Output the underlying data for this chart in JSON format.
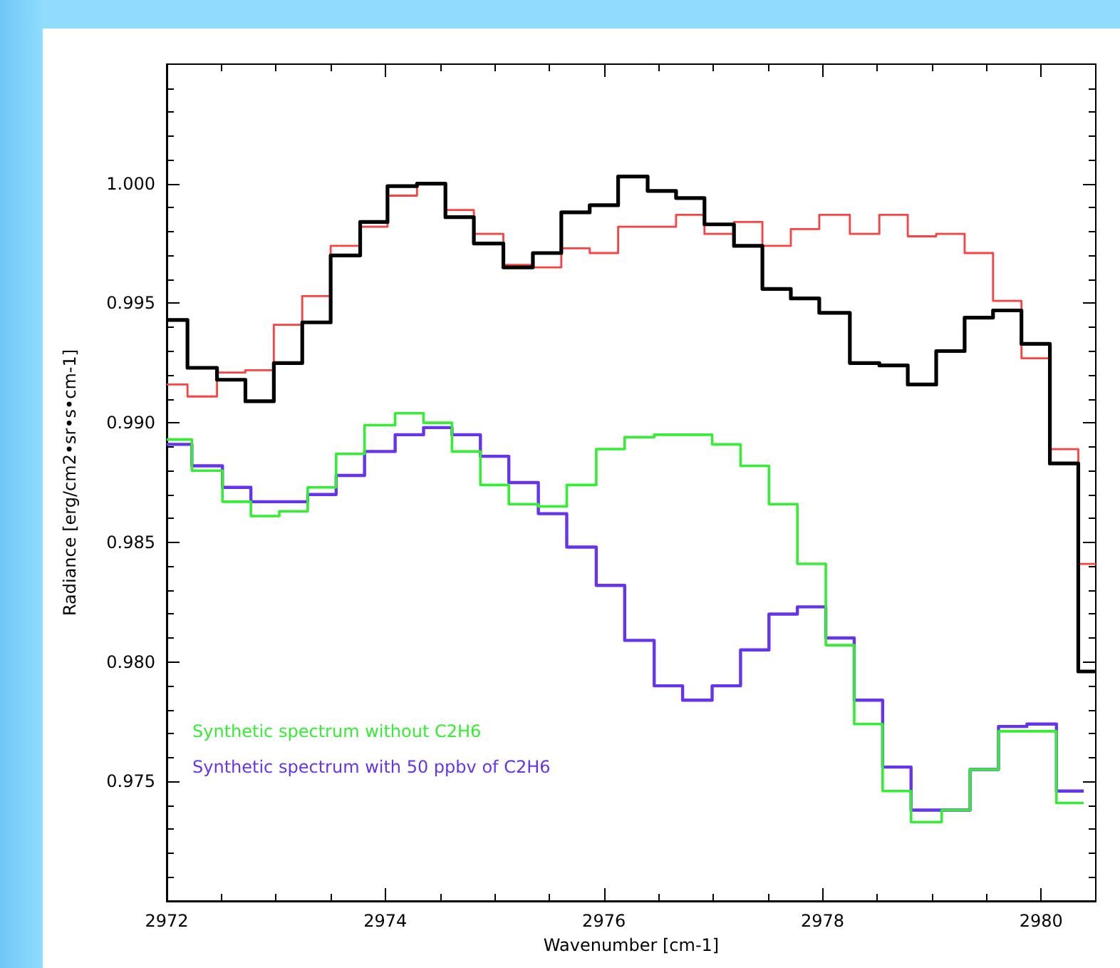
{
  "chart_data": {
    "type": "step",
    "xlabel": "Wavenumber [cm-1]",
    "ylabel": "Radiance [erg/cm2•sr•s•cm-1]",
    "xlim": [
      2972,
      2980.5
    ],
    "ylim": [
      0.97,
      1.005
    ],
    "xticks": [
      2972,
      {
        "value": 2972.5,
        "label": null
      },
      {
        "value": 2973,
        "label": null
      },
      {
        "value": 2973.5,
        "label": null
      },
      2974,
      {
        "value": 2974.5,
        "label": null
      },
      {
        "value": 2975,
        "label": null
      },
      {
        "value": 2975.5,
        "label": null
      },
      2976,
      {
        "value": 2976.5,
        "label": null
      },
      {
        "value": 2977,
        "label": null
      },
      {
        "value": 2977.5,
        "label": null
      },
      2978,
      {
        "value": 2978.5,
        "label": null
      },
      {
        "value": 2979,
        "label": null
      },
      {
        "value": 2979.5,
        "label": null
      },
      2980
    ],
    "yticks": [
      {
        "value": 0.971,
        "label": null
      },
      {
        "value": 0.972,
        "label": null
      },
      {
        "value": 0.973,
        "label": null
      },
      {
        "value": 0.974,
        "label": null
      },
      {
        "value": 0.975,
        "label": "0.975"
      },
      {
        "value": 0.976,
        "label": null
      },
      {
        "value": 0.977,
        "label": null
      },
      {
        "value": 0.978,
        "label": null
      },
      {
        "value": 0.979,
        "label": null
      },
      {
        "value": 0.98,
        "label": "0.980"
      },
      {
        "value": 0.981,
        "label": null
      },
      {
        "value": 0.982,
        "label": null
      },
      {
        "value": 0.983,
        "label": null
      },
      {
        "value": 0.984,
        "label": null
      },
      {
        "value": 0.985,
        "label": "0.985"
      },
      {
        "value": 0.986,
        "label": null
      },
      {
        "value": 0.987,
        "label": null
      },
      {
        "value": 0.988,
        "label": null
      },
      {
        "value": 0.989,
        "label": null
      },
      {
        "value": 0.99,
        "label": "0.990"
      },
      {
        "value": 0.991,
        "label": null
      },
      {
        "value": 0.992,
        "label": null
      },
      {
        "value": 0.993,
        "label": null
      },
      {
        "value": 0.994,
        "label": null
      },
      {
        "value": 0.995,
        "label": "0.995"
      },
      {
        "value": 0.996,
        "label": null
      },
      {
        "value": 0.997,
        "label": null
      },
      {
        "value": 0.998,
        "label": null
      },
      {
        "value": 0.999,
        "label": null
      },
      {
        "value": 1,
        "label": "1.000"
      },
      {
        "value": 1.001,
        "label": null
      },
      {
        "value": 1.002,
        "label": null
      },
      {
        "value": 1.003,
        "label": null
      },
      {
        "value": 1.004,
        "label": null
      }
    ],
    "grid": false,
    "legend": "bottom left",
    "marker": "none",
    "series": [
      {
        "color": "#000000",
        "x": [
          2972,
          2972.19,
          2972.46,
          2972.72,
          2972.98,
          2973.24,
          2973.5,
          2973.77,
          2974.02,
          2974.29,
          2974.55,
          2974.81,
          2975.08,
          2975.35,
          2975.61,
          2975.87,
          2976.13,
          2976.4,
          2976.66,
          2976.92,
          2977.19,
          2977.45,
          2977.71,
          2977.97,
          2978.25,
          2978.52,
          2978.78,
          2979.04,
          2979.3,
          2979.56,
          2979.82,
          2980.08,
          2980.34,
          2980.5
        ],
        "values": [
          0.9943,
          0.9923,
          0.9918,
          0.9909,
          0.9925,
          0.9942,
          0.997,
          0.9984,
          0.9999,
          1.0,
          0.9986,
          0.9975,
          0.9965,
          0.9971,
          0.9988,
          0.9991,
          1.0003,
          0.9997,
          0.9994,
          0.9983,
          0.9974,
          0.9956,
          0.9952,
          0.9946,
          0.9925,
          0.9924,
          0.9916,
          0.993,
          0.9944,
          0.9947,
          0.9933,
          0.9883,
          0.9796,
          0.9796
        ]
      },
      {
        "color": "#ff4040",
        "x": [
          2972,
          2972.19,
          2972.46,
          2972.72,
          2972.98,
          2973.24,
          2973.5,
          2973.77,
          2974.02,
          2974.29,
          2974.55,
          2974.81,
          2975.08,
          2975.35,
          2975.61,
          2975.87,
          2976.13,
          2976.4,
          2976.66,
          2976.92,
          2977.19,
          2977.45,
          2977.71,
          2977.97,
          2978.25,
          2978.52,
          2978.78,
          2979.04,
          2979.3,
          2979.56,
          2979.82,
          2980.08,
          2980.34,
          2980.5
        ],
        "values": [
          0.9916,
          0.9911,
          0.9921,
          0.9922,
          0.9941,
          0.9953,
          0.9974,
          0.9982,
          0.9995,
          1.0,
          0.9989,
          0.9979,
          0.9966,
          0.9965,
          0.9973,
          0.9971,
          0.9982,
          0.9982,
          0.9987,
          0.9979,
          0.9984,
          0.9974,
          0.9981,
          0.9987,
          0.9979,
          0.9987,
          0.9978,
          0.9979,
          0.9971,
          0.9951,
          0.9927,
          0.9889,
          0.9841,
          0.9841
        ]
      },
      {
        "name": "Synthetic spectrum without C2H6",
        "color": "#33ee33",
        "x": [
          2972,
          2972.23,
          2972.51,
          2972.77,
          2973.03,
          2973.29,
          2973.55,
          2973.81,
          2974.09,
          2974.35,
          2974.61,
          2974.87,
          2975.13,
          2975.4,
          2975.66,
          2975.93,
          2976.19,
          2976.46,
          2976.72,
          2976.99,
          2977.25,
          2977.51,
          2977.77,
          2978.03,
          2978.29,
          2978.55,
          2978.81,
          2979.09,
          2979.35,
          2979.61,
          2979.87,
          2980.14,
          2980.39
        ],
        "values": [
          0.9893,
          0.988,
          0.9867,
          0.9861,
          0.9863,
          0.9873,
          0.9887,
          0.9899,
          0.9904,
          0.99,
          0.9888,
          0.9874,
          0.9866,
          0.9865,
          0.9874,
          0.9889,
          0.9894,
          0.9895,
          0.9895,
          0.9891,
          0.9882,
          0.9866,
          0.9841,
          0.9807,
          0.9774,
          0.9746,
          0.9733,
          0.9738,
          0.9755,
          0.9771,
          0.9771,
          0.9741,
          0.9741
        ]
      },
      {
        "name": "Synthetic spectrum with 50 ppbv of C2H6",
        "color": "#6633ee",
        "x": [
          2972,
          2972.23,
          2972.51,
          2972.77,
          2973.03,
          2973.29,
          2973.55,
          2973.81,
          2974.09,
          2974.35,
          2974.61,
          2974.87,
          2975.13,
          2975.4,
          2975.66,
          2975.93,
          2976.19,
          2976.46,
          2976.72,
          2976.99,
          2977.25,
          2977.51,
          2977.77,
          2978.03,
          2978.29,
          2978.55,
          2978.81,
          2979.09,
          2979.35,
          2979.61,
          2979.87,
          2980.14,
          2980.39
        ],
        "values": [
          0.9891,
          0.9882,
          0.9873,
          0.9867,
          0.9867,
          0.987,
          0.9878,
          0.9888,
          0.9895,
          0.9898,
          0.9895,
          0.9886,
          0.9875,
          0.9862,
          0.9848,
          0.9832,
          0.9809,
          0.979,
          0.9784,
          0.979,
          0.9805,
          0.982,
          0.9823,
          0.981,
          0.9784,
          0.9756,
          0.9738,
          0.9738,
          0.9755,
          0.9773,
          0.9774,
          0.9746,
          0.9746
        ]
      }
    ]
  }
}
